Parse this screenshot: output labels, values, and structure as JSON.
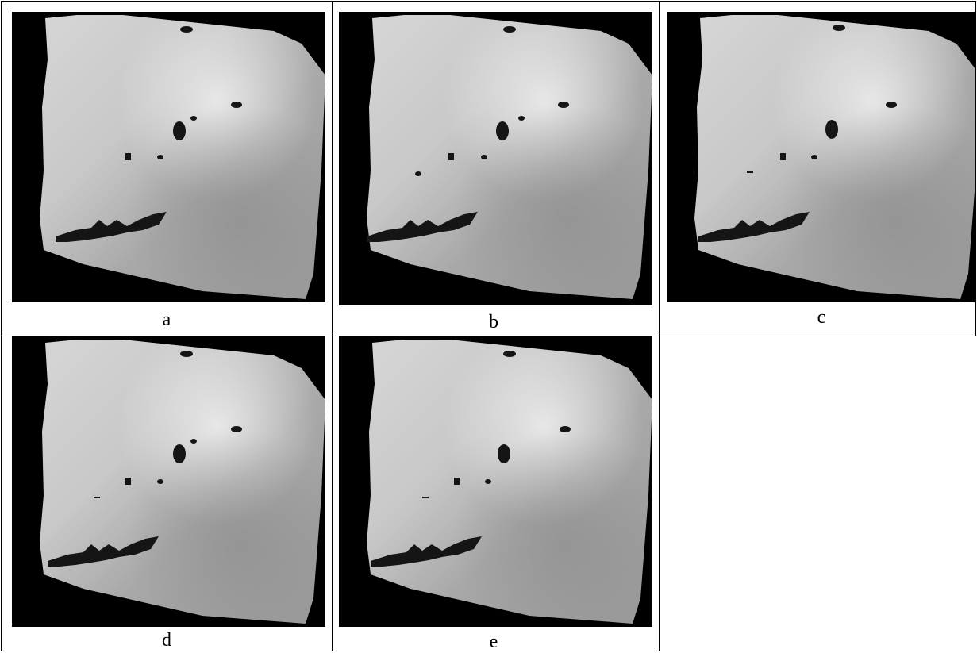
{
  "figure": {
    "panels": [
      {
        "label": "a"
      },
      {
        "label": "b"
      },
      {
        "label": "c"
      },
      {
        "label": "d"
      },
      {
        "label": "e"
      }
    ],
    "colors": {
      "background": "#000000",
      "terrain_light": "#dcdcdc",
      "terrain_mid": "#b4b4b4",
      "terrain_dark": "#8c8c8c",
      "lake": "#151515",
      "grid_line": "#000000"
    }
  }
}
